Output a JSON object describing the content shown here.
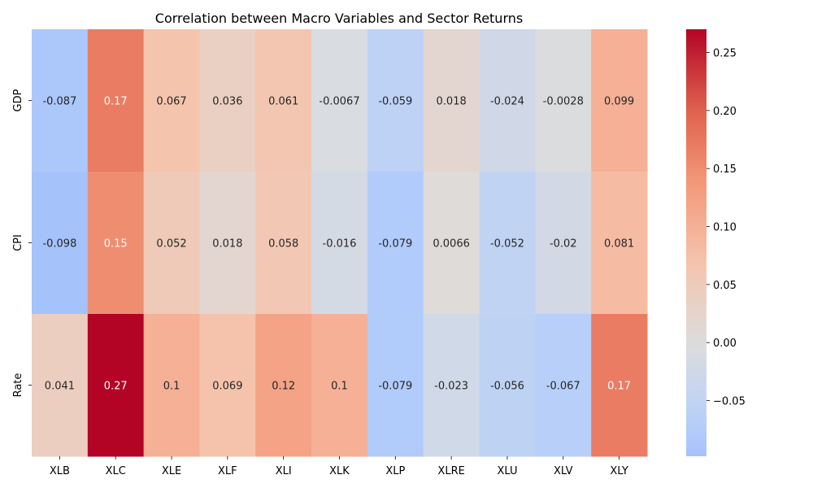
{
  "chart_data": {
    "type": "heatmap",
    "title": "Correlation between Macro Variables and Sector Returns",
    "xlabel": "",
    "ylabel": "",
    "x_categories": [
      "XLB",
      "XLC",
      "XLE",
      "XLF",
      "XLI",
      "XLK",
      "XLP",
      "XLRE",
      "XLU",
      "XLV",
      "XLY"
    ],
    "y_categories": [
      "GDP",
      "CPI",
      "Rate"
    ],
    "values": [
      [
        -0.087,
        0.17,
        0.067,
        0.036,
        0.061,
        -0.0067,
        -0.059,
        0.018,
        -0.024,
        -0.0028,
        0.099
      ],
      [
        -0.098,
        0.15,
        0.052,
        0.018,
        0.058,
        -0.016,
        -0.079,
        0.0066,
        -0.052,
        -0.02,
        0.081
      ],
      [
        0.041,
        0.27,
        0.1,
        0.069,
        0.12,
        0.1,
        -0.079,
        -0.023,
        -0.056,
        -0.067,
        0.17
      ]
    ],
    "value_labels": [
      [
        "-0.087",
        "0.17",
        "0.067",
        "0.036",
        "0.061",
        "-0.0067",
        "-0.059",
        "0.018",
        "-0.024",
        "-0.0028",
        "0.099"
      ],
      [
        "-0.098",
        "0.15",
        "0.052",
        "0.018",
        "0.058",
        "-0.016",
        "-0.079",
        "0.0066",
        "-0.052",
        "-0.02",
        "0.081"
      ],
      [
        "0.041",
        "0.27",
        "0.1",
        "0.069",
        "0.12",
        "0.1",
        "-0.079",
        "-0.023",
        "-0.056",
        "-0.067",
        "0.17"
      ]
    ],
    "colormap": "coolwarm",
    "color_range": [
      -0.098,
      0.27
    ],
    "colorbar_ticks": [
      -0.05,
      0.0,
      0.05,
      0.1,
      0.15,
      0.2,
      0.25
    ],
    "colorbar_tick_labels": [
      "−0.05",
      "0.00",
      "0.05",
      "0.10",
      "0.15",
      "0.20",
      "0.25"
    ],
    "grid": false,
    "legend": "right"
  }
}
